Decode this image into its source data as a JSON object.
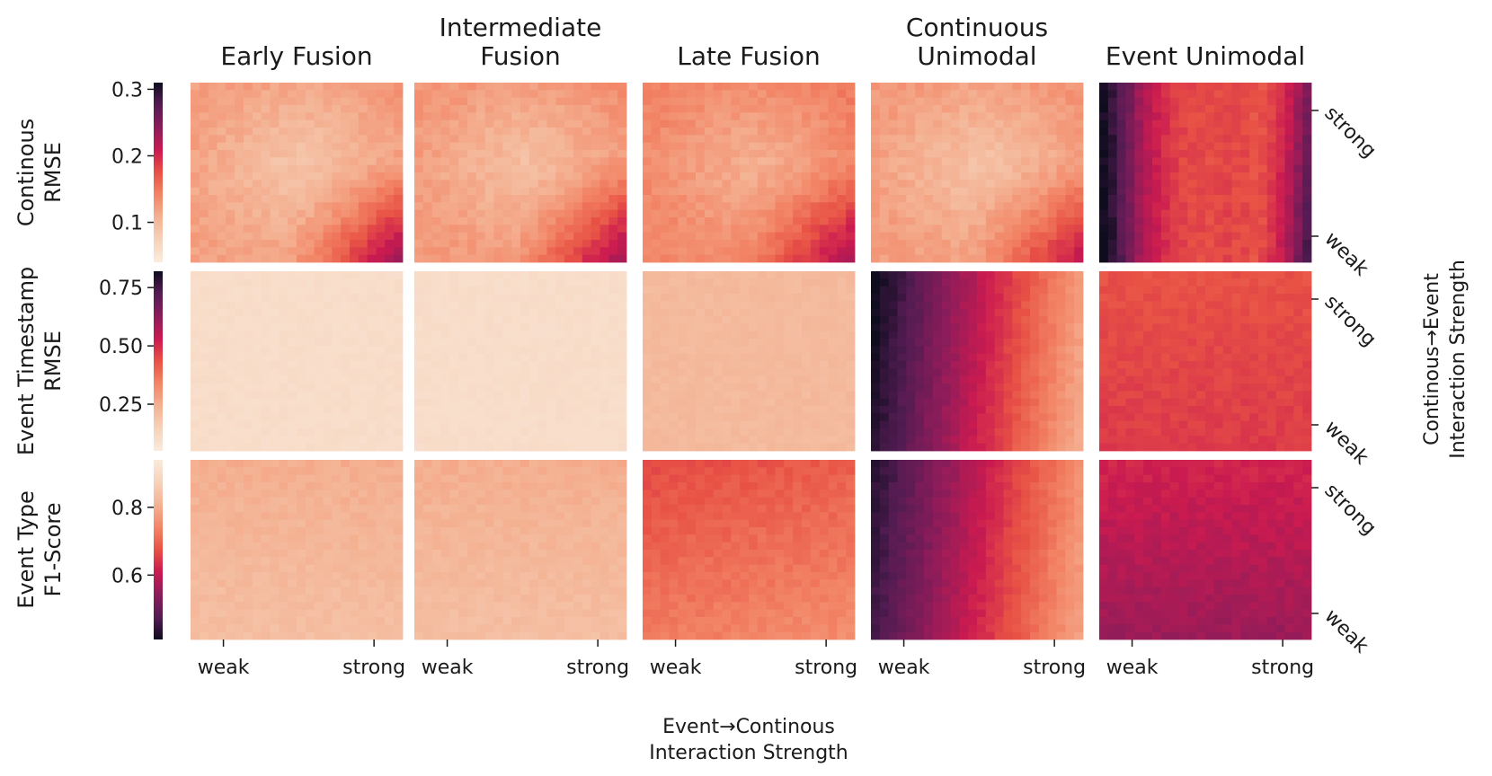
{
  "chart_data": {
    "type": "heatmap",
    "grid_size": 24,
    "columns": [
      {
        "title_lines": [
          "Early Fusion"
        ]
      },
      {
        "title_lines": [
          "Intermediate",
          "Fusion"
        ]
      },
      {
        "title_lines": [
          "Late Fusion"
        ]
      },
      {
        "title_lines": [
          "Continuous",
          "Unimodal"
        ]
      },
      {
        "title_lines": [
          "Event Unimodal"
        ]
      }
    ],
    "rows": [
      {
        "label_lines": [
          "Continous",
          "RMSE"
        ],
        "colorbar_ticks": [
          {
            "value": 0.1,
            "label": "0.1"
          },
          {
            "value": 0.2,
            "label": "0.2"
          },
          {
            "value": 0.3,
            "label": "0.3"
          }
        ],
        "range": [
          0.04,
          0.31
        ],
        "reversed": false
      },
      {
        "label_lines": [
          "Event Timestamp",
          "RMSE"
        ],
        "colorbar_ticks": [
          {
            "value": 0.25,
            "label": "0.25"
          },
          {
            "value": 0.5,
            "label": "0.50"
          },
          {
            "value": 0.75,
            "label": "0.75"
          }
        ],
        "range": [
          0.05,
          0.82
        ],
        "reversed": false
      },
      {
        "label_lines": [
          "Event Type",
          "F1-Score"
        ],
        "colorbar_ticks": [
          {
            "value": 0.6,
            "label": "0.6"
          },
          {
            "value": 0.8,
            "label": "0.8"
          }
        ],
        "range": [
          0.41,
          0.94
        ],
        "reversed": true
      }
    ],
    "x_ticks": [
      "weak",
      "strong"
    ],
    "y_ticks": [
      "strong",
      "weak"
    ],
    "xlabel_lines": [
      "Event→Continous",
      "Interaction Strength"
    ],
    "ylabel_lines": [
      "Continous→Event",
      "Interaction Strength"
    ],
    "colormap": "rocket",
    "cell_intensity": [
      [
        {
          "base": 0.26,
          "dx": 0.02,
          "dy": 0.01,
          "interaction": 0.28,
          "center_dip": 0.1,
          "col_wave": 0.0,
          "noise": 0.06
        },
        {
          "base": 0.28,
          "dx": 0.02,
          "dy": 0.01,
          "interaction": 0.26,
          "center_dip": 0.1,
          "col_wave": 0.0,
          "noise": 0.06
        },
        {
          "base": 0.33,
          "dx": 0.02,
          "dy": 0.01,
          "interaction": 0.22,
          "center_dip": 0.1,
          "col_wave": 0.0,
          "noise": 0.06
        },
        {
          "base": 0.27,
          "dx": 0.02,
          "dy": 0.01,
          "interaction": 0.22,
          "center_dip": 0.1,
          "col_wave": 0.0,
          "noise": 0.06
        },
        {
          "base": 0.62,
          "dx": 0.0,
          "dy": 0.0,
          "interaction": 0.0,
          "center_dip": 0.0,
          "col_wave": 1.0,
          "noise": 0.05
        }
      ],
      [
        {
          "base": 0.07,
          "dx": 0.0,
          "dy": 0.0,
          "interaction": 0.0,
          "center_dip": 0.0,
          "col_wave": 0.0,
          "noise": 0.02
        },
        {
          "base": 0.07,
          "dx": 0.0,
          "dy": 0.0,
          "interaction": 0.0,
          "center_dip": 0.0,
          "col_wave": 0.0,
          "noise": 0.02
        },
        {
          "base": 0.22,
          "dx": 0.0,
          "dy": 0.0,
          "interaction": 0.0,
          "center_dip": 0.0,
          "col_wave": 0.0,
          "noise": 0.03
        },
        {
          "base": 0.95,
          "dx": -0.68,
          "dy": 0.05,
          "interaction": 0.0,
          "center_dip": 0.0,
          "col_wave": 0.0,
          "noise": 0.04
        },
        {
          "base": 0.55,
          "dx": 0.0,
          "dy": -0.05,
          "interaction": 0.0,
          "center_dip": 0.0,
          "col_wave": 0.0,
          "noise": 0.04
        }
      ],
      [
        {
          "base": 0.2,
          "dx": 0.0,
          "dy": 0.06,
          "interaction": 0.0,
          "center_dip": 0.0,
          "col_wave": 0.0,
          "noise": 0.04
        },
        {
          "base": 0.2,
          "dx": 0.0,
          "dy": 0.06,
          "interaction": 0.0,
          "center_dip": 0.0,
          "col_wave": 0.0,
          "noise": 0.04
        },
        {
          "base": 0.4,
          "dx": -0.05,
          "dy": 0.12,
          "interaction": 0.0,
          "center_dip": 0.0,
          "col_wave": 0.0,
          "noise": 0.05
        },
        {
          "base": 0.9,
          "dx": -0.6,
          "dy": 0.05,
          "interaction": 0.0,
          "center_dip": 0.0,
          "col_wave": 0.0,
          "noise": 0.04
        },
        {
          "base": 0.72,
          "dx": 0.0,
          "dy": -0.12,
          "interaction": 0.0,
          "center_dip": 0.0,
          "col_wave": 0.0,
          "noise": 0.05
        }
      ]
    ]
  }
}
